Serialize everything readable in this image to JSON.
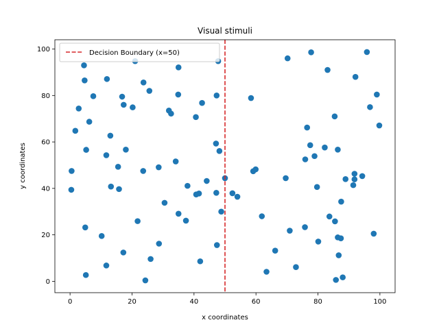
{
  "chart_data": {
    "type": "scatter",
    "title": "Visual stimuli",
    "xlabel": "x coordinates",
    "ylabel": "y coordinates",
    "xlim": [
      -4.9,
      104.9
    ],
    "ylim": [
      -4.9,
      104.0
    ],
    "xticks": [
      0,
      20,
      40,
      60,
      80,
      100
    ],
    "yticks": [
      0,
      20,
      40,
      60,
      80,
      100
    ],
    "grid": false,
    "legend_position": "top-left",
    "point_color": "#1f77b4",
    "line_color": "#d62728",
    "decision_boundary": {
      "x": 50,
      "label": "Decision Boundary (x=50)",
      "style": "dashed"
    },
    "points": [
      [
        0.5,
        47.5
      ],
      [
        0.4,
        39.4
      ],
      [
        1.7,
        64.8
      ],
      [
        2.8,
        74.4
      ],
      [
        4.5,
        93.0
      ],
      [
        4.7,
        86.5
      ],
      [
        5.2,
        56.6
      ],
      [
        4.9,
        23.2
      ],
      [
        5.1,
        2.7
      ],
      [
        6.2,
        68.7
      ],
      [
        7.5,
        79.7
      ],
      [
        10.2,
        19.5
      ],
      [
        11.9,
        87.1
      ],
      [
        11.7,
        54.3
      ],
      [
        13.0,
        62.7
      ],
      [
        13.2,
        40.8
      ],
      [
        11.7,
        6.8
      ],
      [
        15.5,
        49.3
      ],
      [
        15.8,
        39.7
      ],
      [
        16.8,
        79.5
      ],
      [
        17.3,
        76.0
      ],
      [
        17.2,
        12.4
      ],
      [
        18.0,
        56.7
      ],
      [
        20.2,
        74.9
      ],
      [
        21.0,
        94.8
      ],
      [
        21.8,
        25.9
      ],
      [
        23.7,
        85.6
      ],
      [
        23.6,
        47.5
      ],
      [
        24.3,
        0.4
      ],
      [
        25.6,
        82.0
      ],
      [
        26.0,
        9.6
      ],
      [
        28.6,
        49.1
      ],
      [
        28.7,
        16.2
      ],
      [
        30.5,
        33.8
      ],
      [
        31.9,
        73.5
      ],
      [
        32.6,
        72.2
      ],
      [
        34.1,
        51.6
      ],
      [
        35.0,
        92.1
      ],
      [
        34.9,
        80.4
      ],
      [
        35.0,
        29.1
      ],
      [
        37.4,
        26.1
      ],
      [
        37.9,
        41.1
      ],
      [
        40.6,
        70.7
      ],
      [
        40.7,
        37.4
      ],
      [
        41.6,
        37.8
      ],
      [
        42.0,
        8.6
      ],
      [
        42.6,
        76.8
      ],
      [
        44.1,
        43.2
      ],
      [
        47.1,
        59.3
      ],
      [
        47.3,
        80.0
      ],
      [
        47.2,
        38.1
      ],
      [
        47.4,
        15.6
      ],
      [
        47.8,
        94.8
      ],
      [
        48.2,
        56.1
      ],
      [
        48.8,
        30.0
      ],
      [
        50.0,
        44.4
      ],
      [
        52.4,
        37.9
      ],
      [
        54.0,
        36.4
      ],
      [
        58.4,
        78.9
      ],
      [
        59.1,
        47.4
      ],
      [
        59.9,
        48.2
      ],
      [
        61.9,
        28.0
      ],
      [
        63.4,
        4.1
      ],
      [
        66.2,
        13.2
      ],
      [
        69.6,
        44.4
      ],
      [
        70.2,
        96.0
      ],
      [
        70.9,
        21.8
      ],
      [
        72.9,
        6.1
      ],
      [
        75.9,
        52.5
      ],
      [
        75.8,
        23.3
      ],
      [
        76.5,
        66.2
      ],
      [
        77.5,
        58.6
      ],
      [
        77.8,
        98.6
      ],
      [
        78.9,
        53.9
      ],
      [
        79.7,
        40.6
      ],
      [
        80.1,
        17.1
      ],
      [
        82.2,
        57.6
      ],
      [
        83.1,
        91.0
      ],
      [
        83.7,
        27.9
      ],
      [
        85.4,
        71.0
      ],
      [
        85.5,
        25.8
      ],
      [
        85.8,
        0.6
      ],
      [
        86.4,
        18.9
      ],
      [
        86.4,
        56.7
      ],
      [
        86.7,
        11.2
      ],
      [
        87.4,
        18.5
      ],
      [
        87.5,
        34.3
      ],
      [
        88.0,
        1.7
      ],
      [
        88.9,
        44.0
      ],
      [
        91.4,
        41.4
      ],
      [
        91.8,
        46.3
      ],
      [
        91.8,
        43.9
      ],
      [
        92.1,
        88.0
      ],
      [
        94.3,
        45.3
      ],
      [
        95.8,
        98.7
      ],
      [
        96.8,
        75.0
      ],
      [
        98.0,
        20.5
      ],
      [
        99.0,
        80.4
      ],
      [
        99.8,
        67.1
      ]
    ]
  }
}
